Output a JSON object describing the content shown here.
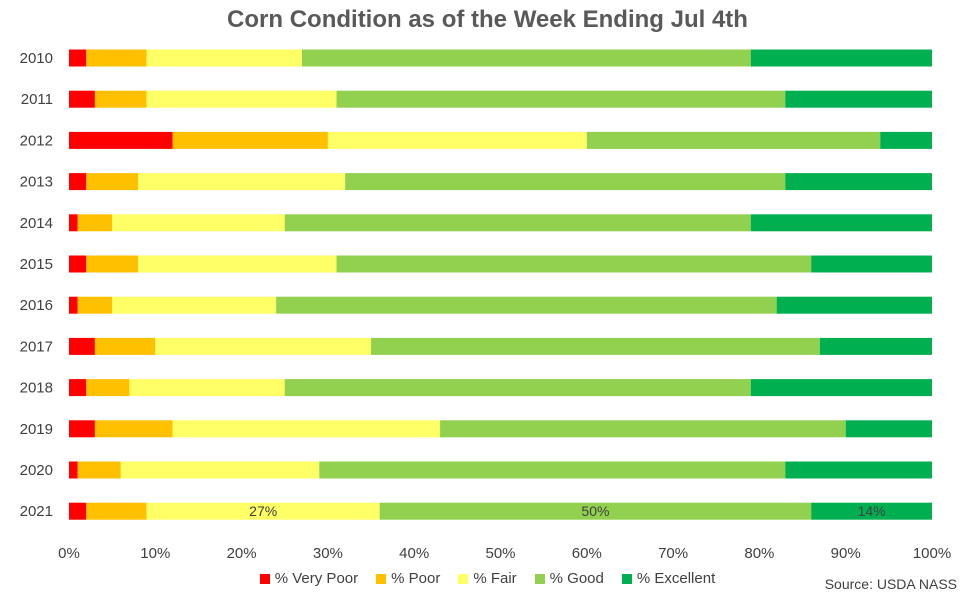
{
  "chart_data": {
    "type": "bar",
    "orientation": "horizontal",
    "stacked": true,
    "title": "Corn Condition as of the Week Ending Jul 4th",
    "categories": [
      "2010",
      "2011",
      "2012",
      "2013",
      "2014",
      "2015",
      "2016",
      "2017",
      "2018",
      "2019",
      "2020",
      "2021"
    ],
    "series": [
      {
        "name": "% Very Poor",
        "color": "#ff0000",
        "values": [
          2,
          3,
          12,
          2,
          1,
          2,
          1,
          3,
          2,
          3,
          1,
          2
        ]
      },
      {
        "name": "% Poor",
        "color": "#ffc000",
        "values": [
          7,
          6,
          18,
          6,
          4,
          6,
          4,
          7,
          5,
          9,
          5,
          7
        ]
      },
      {
        "name": "% Fair",
        "color": "#ffff66",
        "values": [
          18,
          22,
          30,
          24,
          20,
          23,
          19,
          25,
          18,
          31,
          23,
          27
        ]
      },
      {
        "name": "% Good",
        "color": "#92d050",
        "values": [
          52,
          52,
          34,
          51,
          54,
          55,
          58,
          52,
          54,
          47,
          54,
          50
        ]
      },
      {
        "name": "% Excellent",
        "color": "#00b050",
        "values": [
          21,
          17,
          6,
          17,
          21,
          14,
          18,
          13,
          21,
          10,
          17,
          14
        ]
      }
    ],
    "data_labels": [
      {
        "category": "2021",
        "series": "% Fair",
        "text": "27%"
      },
      {
        "category": "2021",
        "series": "% Good",
        "text": "50%"
      },
      {
        "category": "2021",
        "series": "% Excellent",
        "text": "14%"
      }
    ],
    "x_ticks": [
      "0%",
      "10%",
      "20%",
      "30%",
      "40%",
      "50%",
      "60%",
      "70%",
      "80%",
      "90%",
      "100%"
    ],
    "xlim": [
      0,
      100
    ],
    "grid": false,
    "legend_position": "bottom",
    "source": "Source: USDA NASS"
  }
}
